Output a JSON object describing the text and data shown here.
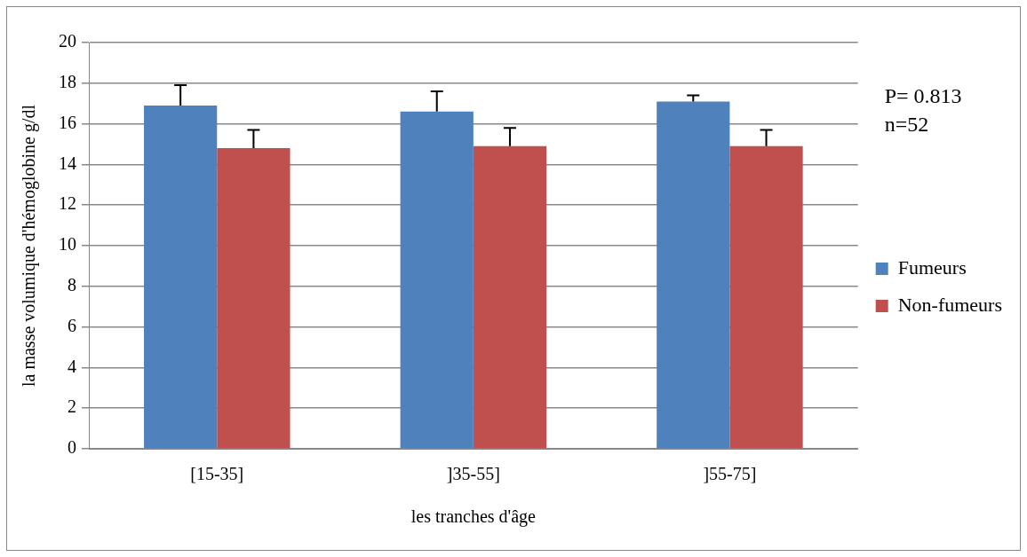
{
  "chart_data": {
    "type": "bar",
    "xlabel": "les tranches d'âge",
    "ylabel": "la masse volumique d'hémoglobine g/dl",
    "categories": [
      "[15-35]",
      "]35-55]",
      "]55-75]"
    ],
    "series": [
      {
        "name": "Fumeurs",
        "color": "#4f81bd",
        "values": [
          16.9,
          16.6,
          17.1
        ],
        "errors": [
          [
            16.9,
            17.9
          ],
          [
            16.6,
            17.6
          ],
          [
            17.1,
            17.4
          ]
        ]
      },
      {
        "name": "Non-fumeurs",
        "color": "#c0504d",
        "values": [
          14.8,
          14.9,
          14.9
        ],
        "errors": [
          [
            14.8,
            15.7
          ],
          [
            14.9,
            15.8
          ],
          [
            14.9,
            15.7
          ]
        ]
      }
    ],
    "ylim": [
      0,
      20
    ],
    "yticks": [
      0,
      2,
      4,
      6,
      8,
      10,
      12,
      14,
      16,
      18,
      20
    ],
    "grid": "y",
    "legend": "right",
    "annotations": [
      "P= 0.813",
      "n=52"
    ]
  }
}
